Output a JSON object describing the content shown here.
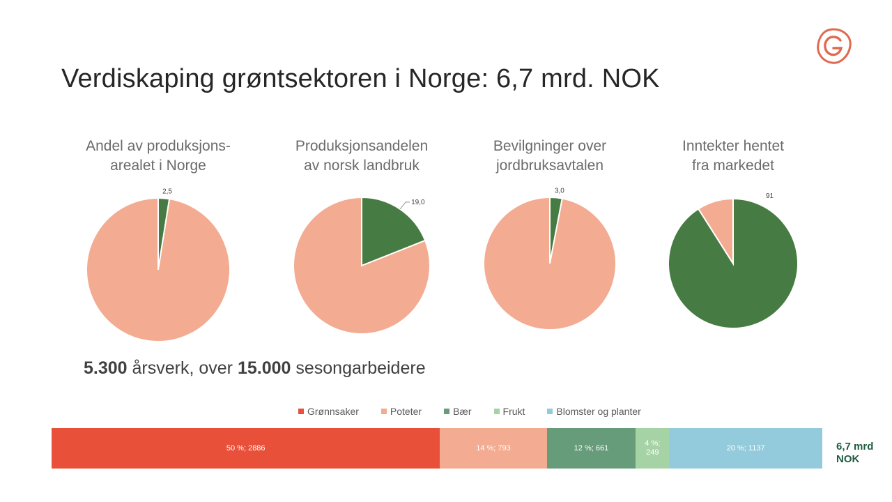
{
  "slide": {
    "title": "Verdiskaping grøntsektoren i Norge: 6,7 mrd. NOK",
    "stat_value1": "5.300",
    "stat_text1": " årsverk, over ",
    "stat_value2": "15.000",
    "stat_text2": " sesongarbeidere",
    "total_label": "6,7 mrd NOK",
    "logo_icon": "g-logo-icon"
  },
  "colors": {
    "green": "#467b43",
    "salmon": "#f3ab92",
    "grønnsaker": "#e8503a",
    "poteter": "#f3ab92",
    "bær": "#679c7a",
    "frukt": "#a6d3a6",
    "blomster": "#94cbdc",
    "logo": "#e06a50"
  },
  "chart_data": [
    {
      "type": "pie",
      "title": "Andel av produksjons-arealet i Norge",
      "title_lines": [
        "Andel av produksjons-",
        "arealet i Norge"
      ],
      "slices": [
        {
          "value": 2.5,
          "label": "2,5",
          "color": "#467b43"
        },
        {
          "value": 97.5,
          "label": "",
          "color": "#f3ab92"
        }
      ]
    },
    {
      "type": "pie",
      "title": "Produksjonsandelen av norsk landbruk",
      "title_lines": [
        "Produksjonsandelen",
        "av norsk landbruk"
      ],
      "slices": [
        {
          "value": 19.0,
          "label": "19,0",
          "color": "#467b43"
        },
        {
          "value": 81.0,
          "label": "",
          "color": "#f3ab92"
        }
      ]
    },
    {
      "type": "pie",
      "title": "Bevilgninger over jordbruksavtalen",
      "title_lines": [
        "Bevilgninger over",
        "jordbruksavtalen"
      ],
      "slices": [
        {
          "value": 3.0,
          "label": "3,0",
          "color": "#467b43"
        },
        {
          "value": 97.0,
          "label": "",
          "color": "#f3ab92"
        }
      ]
    },
    {
      "type": "pie",
      "title": "Inntekter hentet fra markedet",
      "title_lines": [
        "Inntekter hentet",
        "fra markedet"
      ],
      "slices": [
        {
          "value": 91,
          "label": "91",
          "color": "#467b43"
        },
        {
          "value": 9,
          "label": "",
          "color": "#f3ab92"
        }
      ]
    },
    {
      "type": "bar",
      "orientation": "horizontal-stacked-100",
      "categories": [
        "Grønnsaker",
        "Poteter",
        "Bær",
        "Frukt",
        "Blomster og planter"
      ],
      "series": [
        {
          "name": "Grønnsaker",
          "percent": 50,
          "value": 2886,
          "label": "50 %; 2886",
          "color": "#e8503a"
        },
        {
          "name": "Poteter",
          "percent": 14,
          "value": 793,
          "label": "14 %; 793",
          "color": "#f3ab92"
        },
        {
          "name": "Bær",
          "percent": 12,
          "value": 661,
          "label": "12 %; 661",
          "color": "#679c7a"
        },
        {
          "name": "Frukt",
          "percent": 4,
          "value": 249,
          "label": "4 %; 249",
          "color": "#a6d3a6"
        },
        {
          "name": "Blomster og planter",
          "percent": 20,
          "value": 1137,
          "label": "20 %; 1137",
          "color": "#94cbdc"
        }
      ],
      "legend": "top"
    }
  ]
}
